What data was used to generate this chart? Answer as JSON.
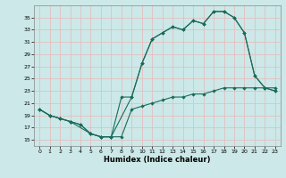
{
  "xlabel": "Humidex (Indice chaleur)",
  "bg_color": "#cce8e8",
  "grid_color": "#e8b8b8",
  "line_color": "#1a6b5a",
  "xlim": [
    -0.5,
    23.5
  ],
  "ylim": [
    14,
    37
  ],
  "xticks": [
    0,
    1,
    2,
    3,
    4,
    5,
    6,
    7,
    8,
    9,
    10,
    11,
    12,
    13,
    14,
    15,
    16,
    17,
    18,
    19,
    20,
    21,
    22,
    23
  ],
  "yticks": [
    15,
    17,
    19,
    21,
    23,
    25,
    27,
    29,
    31,
    33,
    35
  ],
  "c1x": [
    0,
    1,
    2,
    3,
    4,
    5,
    6,
    7,
    8,
    9,
    10,
    11,
    12,
    13,
    14,
    15,
    16,
    17,
    18,
    19,
    20,
    21,
    22,
    23
  ],
  "c1y": [
    20,
    19,
    18.5,
    18,
    17.5,
    16,
    15.5,
    15.5,
    15.5,
    20,
    20.5,
    21,
    21.5,
    22,
    22,
    22.5,
    22.5,
    23,
    23.5,
    23.5,
    23.5,
    23.5,
    23.5,
    23.5
  ],
  "c2x": [
    0,
    1,
    2,
    3,
    4,
    5,
    6,
    7,
    9,
    10,
    11,
    12,
    13,
    14,
    15,
    16,
    17,
    18,
    19,
    20,
    21,
    22,
    23
  ],
  "c2y": [
    20,
    19,
    18.5,
    18,
    17.5,
    16,
    15.5,
    15.5,
    22,
    27.5,
    31.5,
    32.5,
    33.5,
    33,
    34.5,
    34,
    36,
    36,
    35,
    32.5,
    25.5,
    23.5,
    23
  ],
  "c3x": [
    0,
    1,
    2,
    3,
    5,
    6,
    7,
    8,
    9,
    10,
    11,
    12,
    13,
    14,
    15,
    16,
    17,
    18,
    19,
    20,
    21,
    22,
    23
  ],
  "c3y": [
    20,
    19,
    18.5,
    18,
    16,
    15.5,
    15.5,
    22,
    22,
    27.5,
    31.5,
    32.5,
    33.5,
    33,
    34.5,
    34,
    36,
    36,
    35,
    32.5,
    25.5,
    23.5,
    23
  ]
}
